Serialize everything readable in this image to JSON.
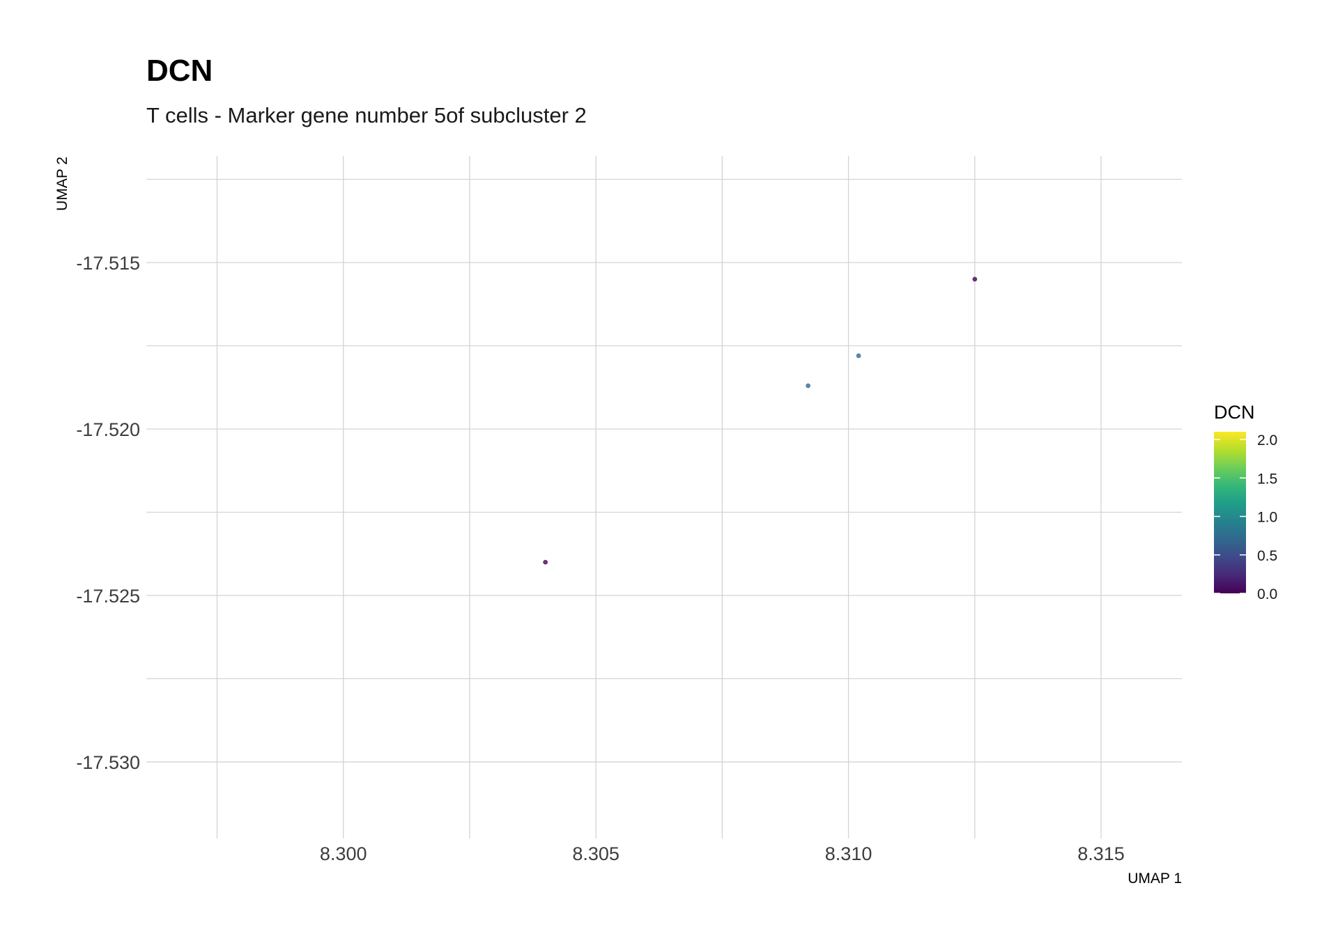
{
  "chart_data": {
    "type": "scatter",
    "title": "DCN",
    "subtitle": "T cells - Marker gene number 5of subcluster 2",
    "xlabel": "UMAP 1",
    "ylabel": "UMAP 2",
    "xlim": [
      8.2961,
      8.3166
    ],
    "ylim": [
      -17.5323,
      -17.5118
    ],
    "x_ticks": [
      8.3,
      8.305,
      8.31,
      8.315
    ],
    "x_tick_labels": [
      "8.300",
      "8.305",
      "8.310",
      "8.315"
    ],
    "x_minor_ticks": [
      8.2975,
      8.3025,
      8.3075,
      8.3125
    ],
    "y_ticks": [
      -17.515,
      -17.52,
      -17.525,
      -17.53
    ],
    "y_tick_labels": [
      "-17.515",
      "-17.520",
      "-17.525",
      "-17.530"
    ],
    "y_minor_ticks": [
      -17.5125,
      -17.5175,
      -17.5225,
      -17.5275
    ],
    "grid": true,
    "legend": {
      "title": "DCN",
      "placement": "right",
      "colorscale": "viridis",
      "range": [
        0,
        2.1
      ],
      "tick_values": [
        0.0,
        0.5,
        1.0,
        1.5,
        2.0
      ],
      "tick_labels": [
        "0.0",
        "0.5",
        "1.0",
        "1.5",
        "2.0"
      ]
    },
    "points": [
      {
        "x": 8.304,
        "y": -17.524,
        "value": 0.0
      },
      {
        "x": 8.3092,
        "y": -17.5187,
        "value": 0.7
      },
      {
        "x": 8.3102,
        "y": -17.5178,
        "value": 0.7
      },
      {
        "x": 8.3125,
        "y": -17.5155,
        "value": 0.0
      }
    ],
    "colors": {
      "grid": "#d3d3d3",
      "point_low": "#440154",
      "point_mid": "#31688e",
      "point_high": "#fde725"
    }
  }
}
